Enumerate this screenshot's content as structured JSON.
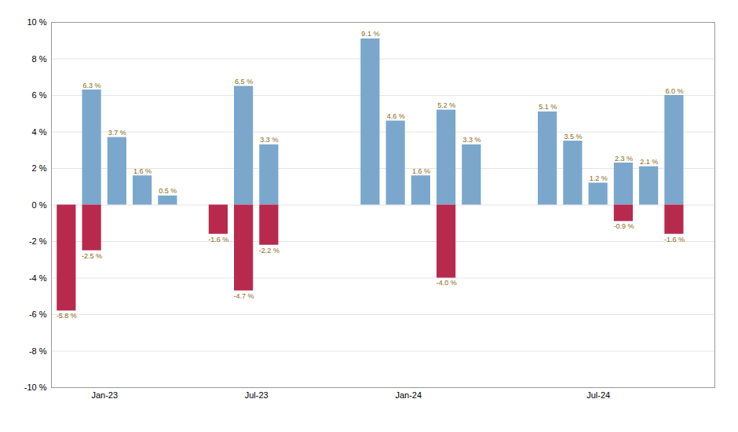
{
  "chart_data": {
    "type": "bar",
    "xlim": [
      -0.6,
      25.6
    ],
    "xticks": [
      {
        "value": 1.5,
        "label": "Jan-23"
      },
      {
        "value": 7.5,
        "label": "Jul-23"
      },
      {
        "value": 13.5,
        "label": "Jan-24"
      },
      {
        "value": 21.0,
        "label": "Jul-24"
      }
    ],
    "ylim": [
      -10,
      10
    ],
    "yticks": [
      {
        "value": -10,
        "label": "-10 %"
      },
      {
        "value": -8,
        "label": "-8 %"
      },
      {
        "value": -6,
        "label": "-6 %"
      },
      {
        "value": -4,
        "label": "-4 %"
      },
      {
        "value": -2,
        "label": "-2 %"
      },
      {
        "value": 0,
        "label": "0 %"
      },
      {
        "value": 2,
        "label": "2 %"
      },
      {
        "value": 4,
        "label": "4 %"
      },
      {
        "value": 6,
        "label": "6 %"
      },
      {
        "value": 8,
        "label": "8 %"
      },
      {
        "value": 10,
        "label": "10 %"
      }
    ],
    "grid": true,
    "data_labels": true,
    "series": [
      {
        "color": "#7BA7CC",
        "x": [
          1,
          2,
          3,
          4,
          7,
          8,
          12,
          13,
          14,
          15,
          16,
          19,
          20,
          21,
          22,
          23,
          24
        ],
        "values": [
          6.3,
          3.7,
          1.6,
          0.5,
          6.5,
          3.3,
          9.1,
          4.6,
          1.6,
          5.2,
          3.3,
          5.1,
          3.5,
          1.2,
          2.3,
          2.1,
          6.0
        ],
        "value_labels": [
          "6.3 %",
          "3.7 %",
          "1.6 %",
          "0.5 %",
          "6.5 %",
          "3.3 %",
          "9.1 %",
          "4.6 %",
          "1.6 %",
          "5.2 %",
          "3.3 %",
          "5.1 %",
          "3.5 %",
          "1.2 %",
          "2.3 %",
          "2.1 %",
          "6.0 %"
        ]
      },
      {
        "color": "#B8294E",
        "x": [
          0,
          1,
          6,
          7,
          8,
          15,
          22,
          24
        ],
        "values": [
          -5.8,
          -2.5,
          -1.6,
          -4.7,
          -2.2,
          -4.0,
          -0.9,
          -1.6
        ],
        "value_labels": [
          "-5.8 %",
          "-2.5 %",
          "-1.6 %",
          "-4.7 %",
          "-2.2 %",
          "-4.0 %",
          "-0.9 %",
          "-1.6 %"
        ]
      }
    ]
  }
}
